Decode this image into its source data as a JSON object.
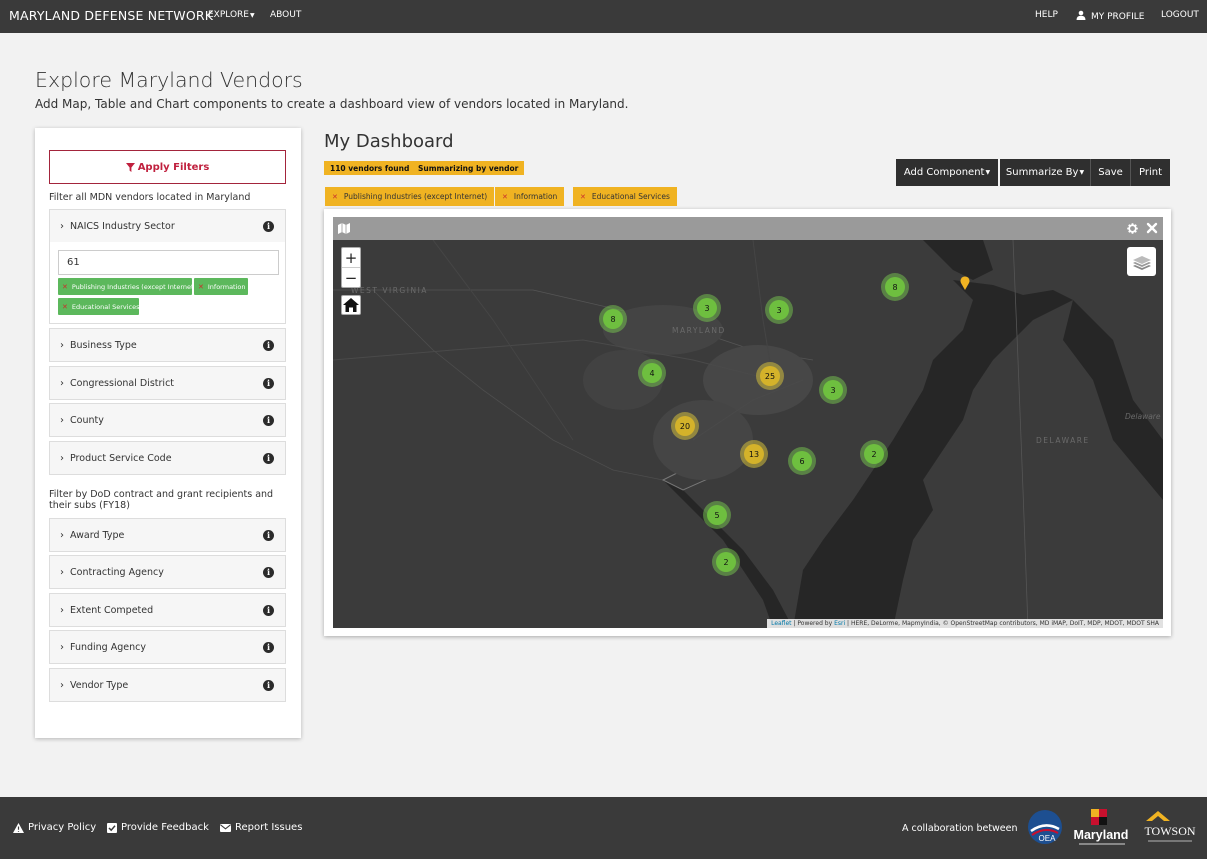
{
  "nav": {
    "brand": "MARYLAND DEFENSE NETWORK",
    "explore": "EXPLORE",
    "about": "ABOUT",
    "help": "HELP",
    "profile": "MY PROFILE",
    "logout": "LOGOUT"
  },
  "header": {
    "title": "Explore Maryland Vendors",
    "subtitle": "Add Map, Table and Chart components to create a dashboard view of vendors located in Maryland."
  },
  "filters": {
    "apply_label": "Apply Filters",
    "note_all": "Filter all MDN vendors located in Maryland",
    "note_dod": "Filter by DoD contract and grant recipients and their subs (FY18)",
    "naics": {
      "label": "NAICS Industry Sector",
      "input_value": "61",
      "chips": [
        "Publishing Industries (except Internet)",
        "Information",
        "Educational Services"
      ]
    },
    "groups_top": [
      "Business Type",
      "Congressional District",
      "County",
      "Product Service Code"
    ],
    "groups_dod": [
      "Award Type",
      "Contracting Agency",
      "Extent Competed",
      "Funding Agency",
      "Vendor Type"
    ]
  },
  "dashboard": {
    "title": "My Dashboard",
    "badges": [
      "110 vendors found",
      "Summarizing by vendor"
    ],
    "toolbar": {
      "add_component": "Add Component",
      "summarize_by": "Summarize By",
      "save": "Save",
      "print": "Print"
    },
    "active_filters": [
      "Publishing Industries (except Internet)",
      "Information",
      "Educational Services"
    ]
  },
  "map": {
    "labels": {
      "west_virginia": "WEST VIRGINIA",
      "maryland": "MARYLAND",
      "delaware": "DELAWARE",
      "delaware_bay": "Delaware"
    },
    "clusters": [
      {
        "count": "8",
        "color": "green"
      },
      {
        "count": "3",
        "color": "green"
      },
      {
        "count": "3",
        "color": "green"
      },
      {
        "count": "8",
        "color": "green"
      },
      {
        "count": "4",
        "color": "green"
      },
      {
        "count": "25",
        "color": "yellow"
      },
      {
        "count": "3",
        "color": "green"
      },
      {
        "count": "20",
        "color": "yellow"
      },
      {
        "count": "13",
        "color": "yellow"
      },
      {
        "count": "6",
        "color": "green"
      },
      {
        "count": "2",
        "color": "green"
      },
      {
        "count": "5",
        "color": "green"
      },
      {
        "count": "2",
        "color": "green"
      }
    ],
    "attribution": {
      "leaflet": "Leaflet",
      "powered_by": "Powered by",
      "esri": "Esri",
      "rest": "HERE, DeLorme, MapmyIndia, © OpenStreetMap contributors, MD iMAP, DoIT, MDP, MDOT, MDOT SHA"
    }
  },
  "footer": {
    "privacy": "Privacy Policy",
    "feedback": "Provide Feedback",
    "issues": "Report Issues",
    "collab": "A collaboration between",
    "logos": [
      "OEA",
      "Maryland",
      "TOWSON"
    ]
  },
  "colors": {
    "nav_bg": "#3a3a3a",
    "accent_red": "#c0203e",
    "badge_yellow": "#f0b322",
    "chip_green": "#5cb85c",
    "map_bg": "#3b3b3b"
  },
  "icons": [
    "filter-icon",
    "user-icon",
    "info-icon",
    "chevron-right-icon",
    "map-icon",
    "gear-icon",
    "close-icon",
    "home-icon",
    "layers-icon",
    "warning-icon",
    "checkbox-icon",
    "envelope-icon",
    "location-pin-icon"
  ]
}
